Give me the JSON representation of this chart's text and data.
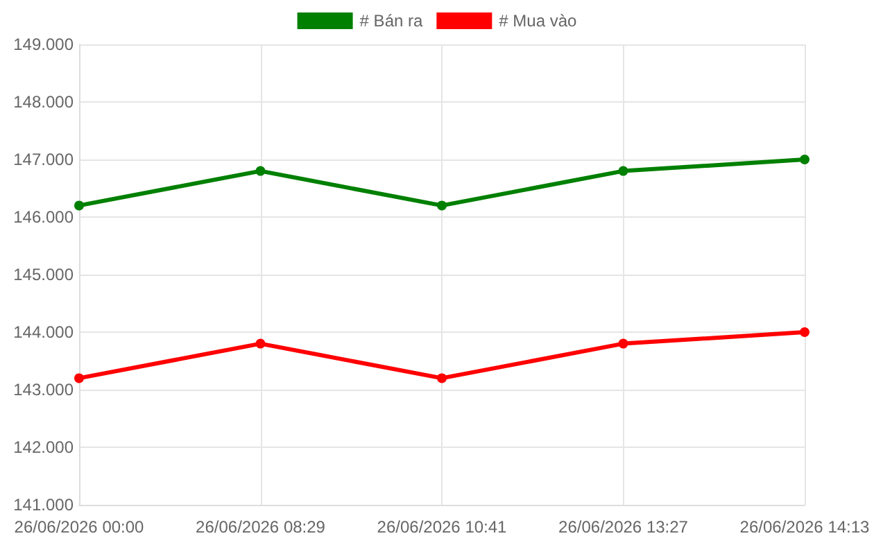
{
  "chart_data": {
    "type": "line",
    "categories": [
      "26/06/2026 00:00",
      "26/06/2026 08:29",
      "26/06/2026 10:41",
      "26/06/2026 13:27",
      "26/06/2026 14:13"
    ],
    "series": [
      {
        "name": "# Bán ra",
        "color": "#008000",
        "values": [
          146200,
          146800,
          146200,
          146800,
          147000
        ]
      },
      {
        "name": "# Mua vào",
        "color": "#ff0000",
        "values": [
          143200,
          143800,
          143200,
          143800,
          144000
        ]
      }
    ],
    "ylim": [
      141000,
      149000
    ],
    "yticks": [
      {
        "value": 141000,
        "label": "141.000"
      },
      {
        "value": 142000,
        "label": "142.000"
      },
      {
        "value": 143000,
        "label": "143.000"
      },
      {
        "value": 144000,
        "label": "144.000"
      },
      {
        "value": 145000,
        "label": "145.000"
      },
      {
        "value": 146000,
        "label": "146.000"
      },
      {
        "value": 147000,
        "label": "147.000"
      },
      {
        "value": 148000,
        "label": "148.000"
      },
      {
        "value": 149000,
        "label": "149.000"
      }
    ],
    "grid": true,
    "legend": "top",
    "marker": "circle",
    "line_style": "solid"
  }
}
